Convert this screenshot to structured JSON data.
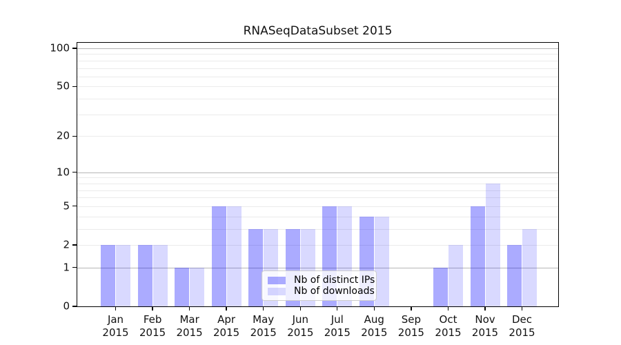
{
  "chart_data": {
    "type": "bar",
    "title": "RNASeqDataSubset 2015",
    "categories": [
      "Jan 2015",
      "Feb 2015",
      "Mar 2015",
      "Apr 2015",
      "May 2015",
      "Jun 2015",
      "Jul 2015",
      "Aug 2015",
      "Sep 2015",
      "Oct 2015",
      "Nov 2015",
      "Dec 2015"
    ],
    "series": [
      {
        "name": "Nb of distinct IPs",
        "color": "rgba(0,0,255,0.33)",
        "values": [
          2,
          2,
          1,
          5,
          3,
          3,
          5,
          4,
          0,
          1,
          5,
          2
        ]
      },
      {
        "name": "Nb of downloads",
        "color": "rgba(0,0,255,0.15)",
        "values": [
          2,
          2,
          1,
          5,
          3,
          3,
          5,
          4,
          0,
          2,
          8,
          3
        ]
      }
    ],
    "xlabel": "",
    "ylabel": "",
    "yscale": "log10(1+y)",
    "ylim": [
      0,
      110
    ],
    "yticks": [
      0,
      1,
      2,
      5,
      10,
      20,
      50,
      100
    ],
    "major_gridlines": [
      1,
      10,
      100
    ],
    "minor_gridlines": [
      2,
      3,
      4,
      5,
      6,
      7,
      8,
      9,
      20,
      30,
      40,
      50,
      60,
      70,
      80,
      90
    ],
    "grid": true,
    "legend_position": "lower center"
  },
  "colors": {
    "background": "#ffffff",
    "spine": "#000000",
    "major_grid": "#b5b5b5",
    "minor_grid": "#ebebeb",
    "legend_border": "#cccccc",
    "bar_distinct_ips": "#aaaaff",
    "bar_downloads": "#d8d8ff"
  }
}
